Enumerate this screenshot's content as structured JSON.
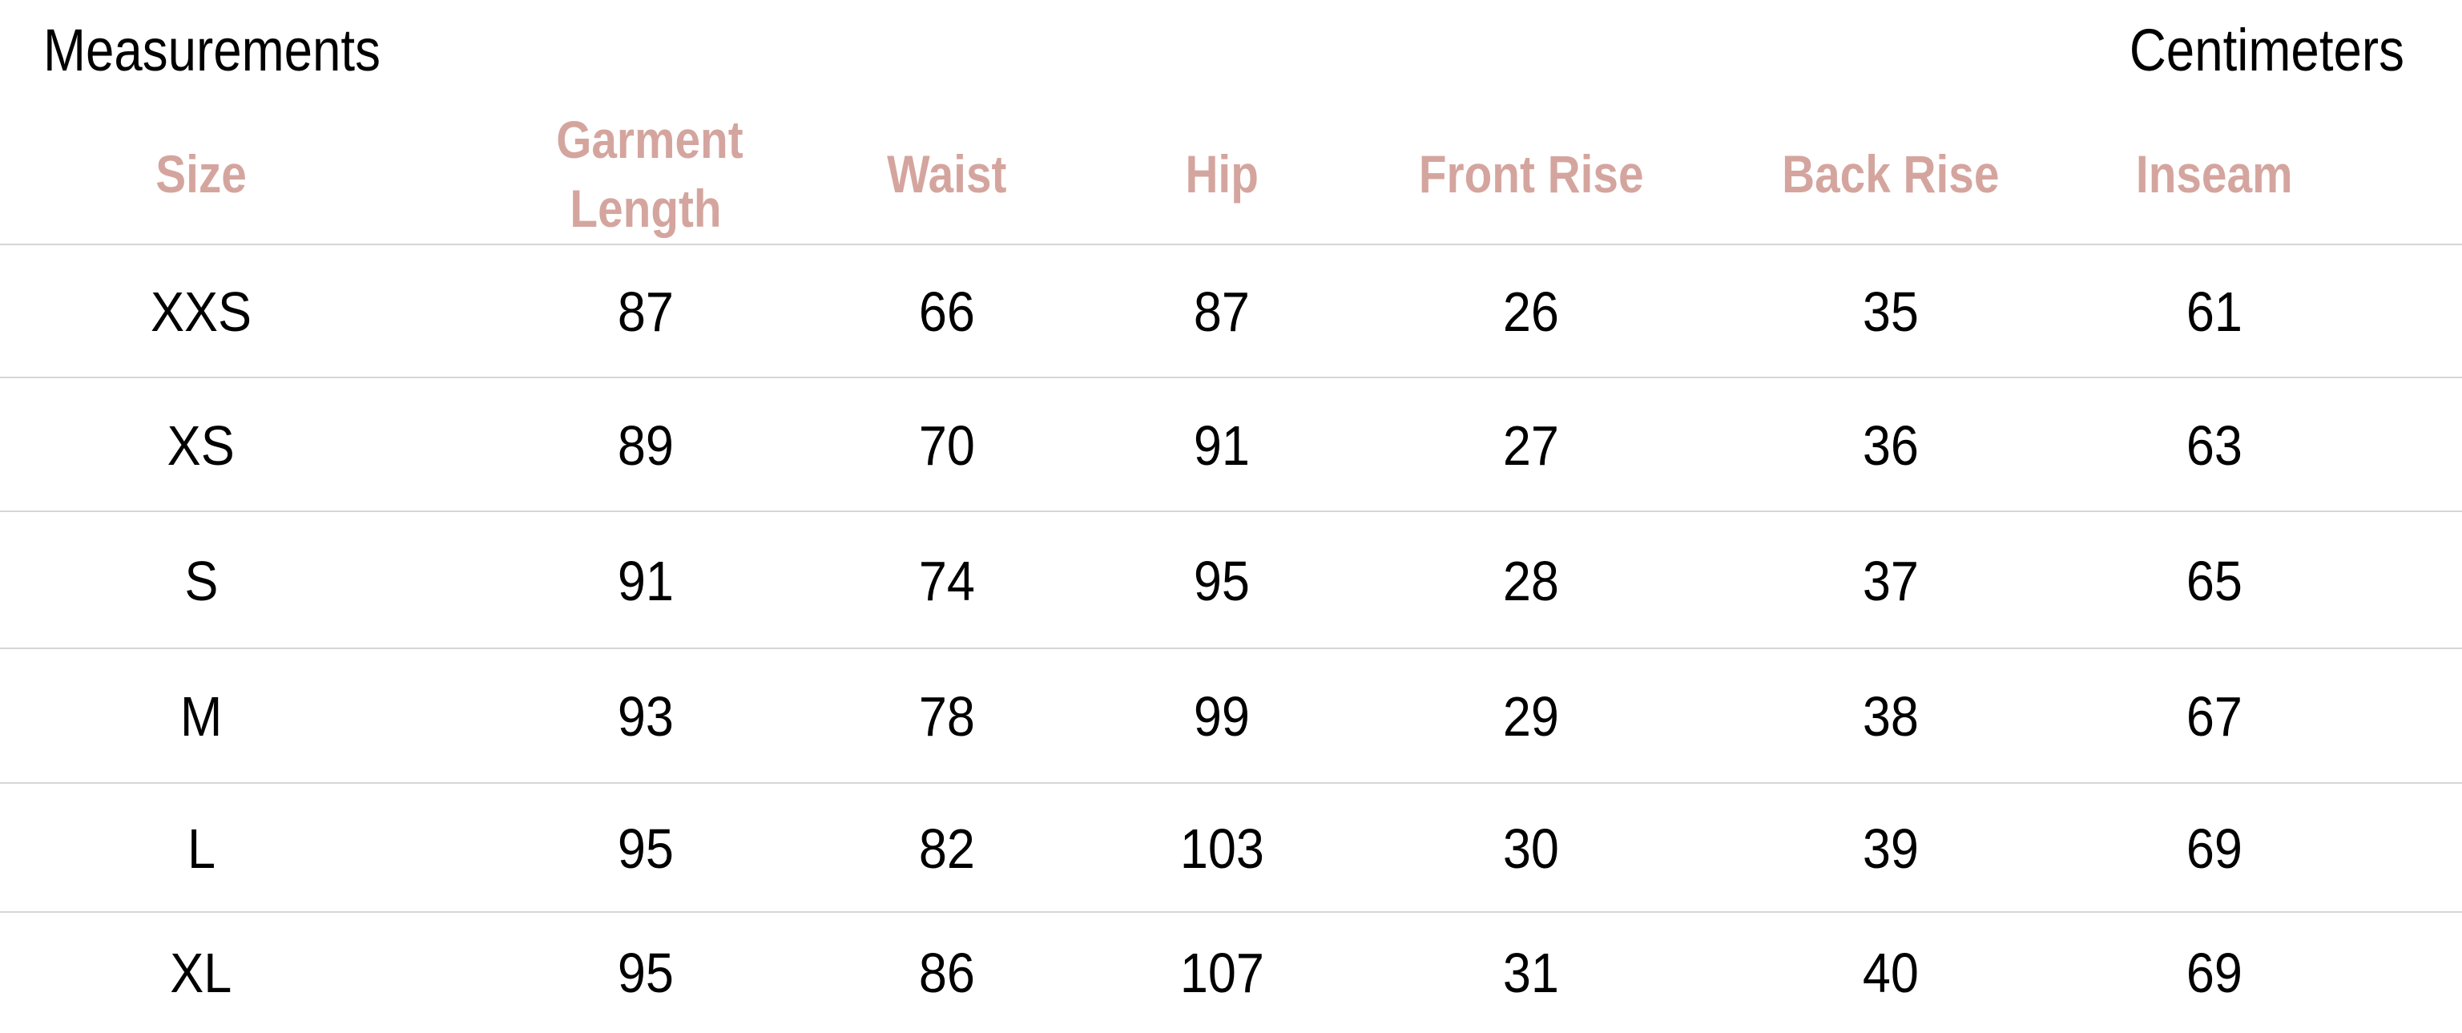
{
  "title": "Measurements",
  "unit": "Centimeters",
  "header_color": "#d4a59e",
  "columns": [
    "Size",
    "Garment Length",
    "Waist",
    "Hip",
    "Front Rise",
    "Back Rise",
    "Inseam"
  ],
  "rows": [
    [
      "XXS",
      "87",
      "66",
      "87",
      "26",
      "35",
      "61"
    ],
    [
      "XS",
      "89",
      "70",
      "91",
      "27",
      "36",
      "63"
    ],
    [
      "S",
      "91",
      "74",
      "95",
      "28",
      "37",
      "65"
    ],
    [
      "M",
      "93",
      "78",
      "99",
      "29",
      "38",
      "67"
    ],
    [
      "L",
      "95",
      "82",
      "103",
      "30",
      "39",
      "69"
    ],
    [
      "XL",
      "95",
      "86",
      "107",
      "31",
      "40",
      "69"
    ]
  ]
}
